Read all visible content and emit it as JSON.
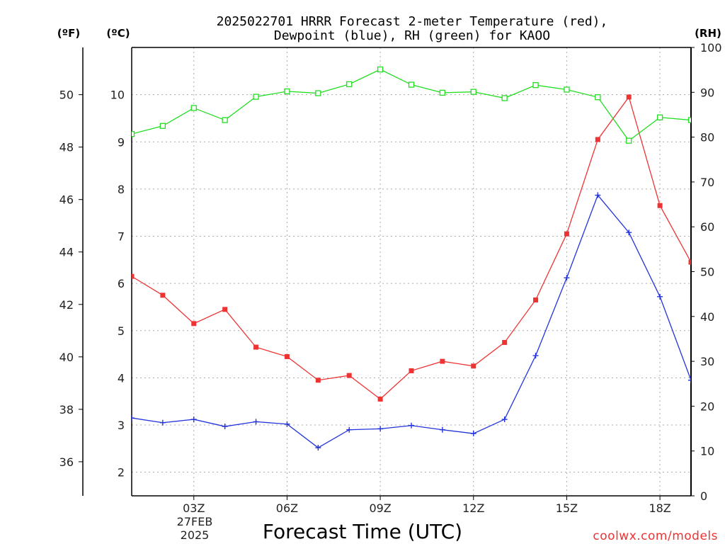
{
  "chart_data": {
    "type": "line",
    "title_line1": "2025022701 HRRR Forecast 2-meter Temperature (red),",
    "title_line2": "Dewpoint (blue), RH (green) for KAOO",
    "unit_f": "(ºF)",
    "unit_c": "(ºC)",
    "unit_rh": "(RH)",
    "xlabel": "Forecast Time (UTC)",
    "credit": "coolwx.com/models",
    "date_label": [
      "27FEB",
      "2025"
    ],
    "x_hours": [
      1,
      2,
      3,
      4,
      5,
      6,
      7,
      8,
      9,
      10,
      11,
      12,
      13,
      14,
      15,
      16,
      17,
      18,
      19
    ],
    "x_range": [
      1,
      19
    ],
    "x_ticks": [
      {
        "hour": 3,
        "label": "03Z"
      },
      {
        "hour": 6,
        "label": "06Z"
      },
      {
        "hour": 9,
        "label": "09Z"
      },
      {
        "hour": 12,
        "label": "12Z"
      },
      {
        "hour": 15,
        "label": "15Z"
      },
      {
        "hour": 18,
        "label": "18Z"
      }
    ],
    "y_left_c_range": [
      1.5,
      11.0
    ],
    "y_left_c_ticks": [
      2,
      3,
      4,
      5,
      6,
      7,
      8,
      9,
      10
    ],
    "y_left_f_ticks": [
      36,
      38,
      40,
      42,
      44,
      46,
      48,
      50
    ],
    "y_right_rh_range": [
      0,
      100
    ],
    "y_right_rh_ticks": [
      0,
      10,
      20,
      30,
      40,
      50,
      60,
      70,
      80,
      90,
      100
    ],
    "grid": true,
    "series": [
      {
        "name": "Temperature",
        "color": "#ee3333",
        "marker": "filled-square",
        "axis": "celsius",
        "values": [
          6.15,
          5.75,
          5.15,
          5.45,
          4.65,
          4.45,
          3.95,
          4.05,
          3.55,
          4.15,
          4.35,
          4.25,
          4.75,
          5.65,
          7.05,
          9.05,
          9.95,
          7.65,
          6.45
        ]
      },
      {
        "name": "Dewpoint",
        "color": "#2233dd",
        "marker": "plus",
        "axis": "celsius",
        "values": [
          3.15,
          3.05,
          3.12,
          2.97,
          3.07,
          3.02,
          2.52,
          2.9,
          2.92,
          2.99,
          2.9,
          2.82,
          3.12,
          4.47,
          6.12,
          7.87,
          7.08,
          5.72,
          3.95
        ]
      },
      {
        "name": "RH",
        "color": "#22dd22",
        "marker": "open-square",
        "axis": "rh",
        "values": [
          80.7,
          82.5,
          86.5,
          83.8,
          89.0,
          90.2,
          89.8,
          91.8,
          95.1,
          91.7,
          89.9,
          90.1,
          88.7,
          91.6,
          90.6,
          88.9,
          79.2,
          84.4,
          83.8
        ]
      }
    ]
  }
}
